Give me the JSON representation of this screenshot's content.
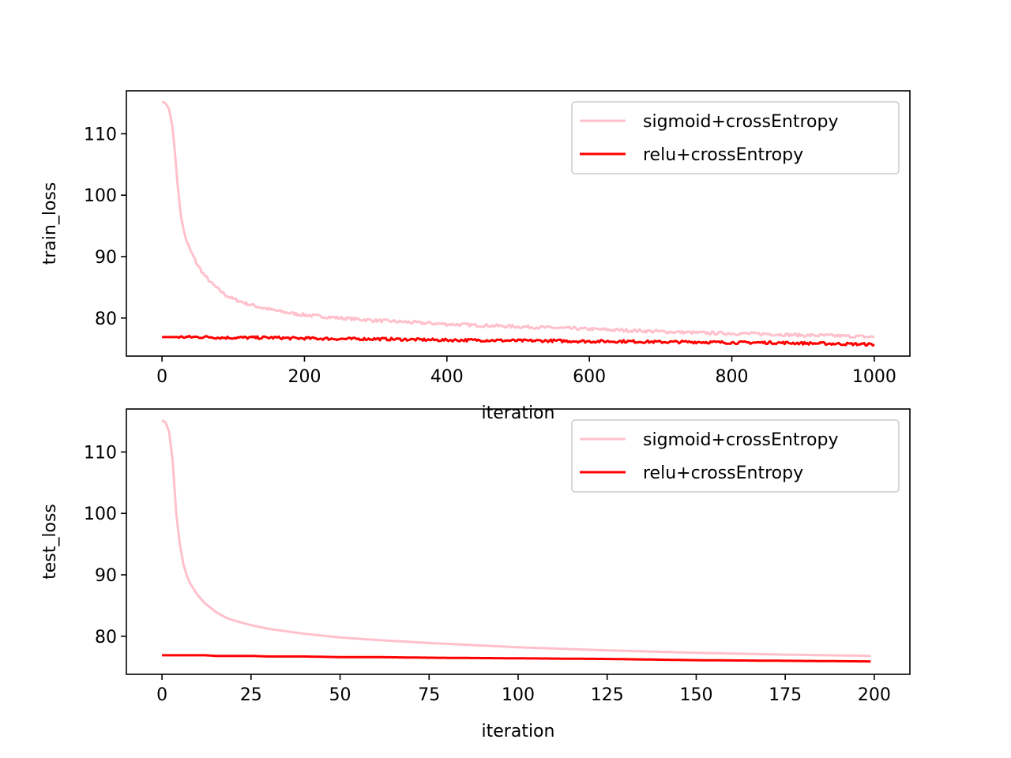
{
  "chart_data": [
    {
      "type": "line",
      "ylabel": "train_loss",
      "xlabel": "iteration",
      "xlim": [
        -50,
        1050
      ],
      "ylim": [
        73.8,
        117
      ],
      "xticks": [
        0,
        200,
        400,
        600,
        800,
        1000
      ],
      "yticks": [
        80,
        90,
        100,
        110
      ],
      "legend_position": "top-right",
      "x": [
        0,
        5,
        10,
        15,
        20,
        25,
        30,
        35,
        40,
        50,
        60,
        70,
        80,
        90,
        100,
        120,
        140,
        160,
        180,
        200,
        250,
        300,
        350,
        400,
        450,
        500,
        550,
        600,
        650,
        700,
        750,
        800,
        850,
        900,
        950,
        1000
      ],
      "series": [
        {
          "name": "sigmoid+crossEntropy",
          "color": "#ffc0cb",
          "values": [
            115.2,
            115.0,
            114.0,
            111.0,
            104.5,
            98.0,
            94.5,
            92.3,
            91.0,
            88.6,
            86.9,
            85.6,
            84.6,
            83.7,
            83.1,
            82.3,
            81.7,
            81.2,
            80.8,
            80.5,
            80.0,
            79.6,
            79.3,
            79.0,
            78.8,
            78.6,
            78.4,
            78.2,
            78.0,
            77.8,
            77.6,
            77.5,
            77.4,
            77.2,
            77.1,
            76.9
          ]
        },
        {
          "name": "relu+crossEntropy",
          "color": "#ff0000",
          "values": [
            76.9,
            76.9,
            76.9,
            76.9,
            76.9,
            76.9,
            76.9,
            76.9,
            76.9,
            76.9,
            76.9,
            76.9,
            76.8,
            76.8,
            76.8,
            76.8,
            76.8,
            76.8,
            76.7,
            76.7,
            76.6,
            76.6,
            76.5,
            76.4,
            76.4,
            76.3,
            76.3,
            76.2,
            76.2,
            76.1,
            76.1,
            76.0,
            76.0,
            75.9,
            75.8,
            75.7
          ]
        }
      ]
    },
    {
      "type": "line",
      "ylabel": "test_loss",
      "xlabel": "iteration",
      "xlim": [
        -10,
        210
      ],
      "ylim": [
        73.8,
        117
      ],
      "xticks": [
        0,
        25,
        50,
        75,
        100,
        125,
        150,
        175,
        200
      ],
      "yticks": [
        80,
        90,
        100,
        110
      ],
      "legend_position": "top-right",
      "x": [
        0,
        1,
        2,
        3,
        4,
        5,
        6,
        7,
        8,
        10,
        12,
        15,
        18,
        20,
        25,
        30,
        40,
        50,
        60,
        75,
        100,
        125,
        150,
        175,
        199
      ],
      "series": [
        {
          "name": "sigmoid+crossEntropy",
          "color": "#ffc0cb",
          "values": [
            115.2,
            114.8,
            113.3,
            108.5,
            100.0,
            95.0,
            91.8,
            89.8,
            88.5,
            86.7,
            85.4,
            84.0,
            83.0,
            82.6,
            81.8,
            81.2,
            80.4,
            79.8,
            79.4,
            78.9,
            78.2,
            77.7,
            77.3,
            77.0,
            76.8
          ]
        },
        {
          "name": "relu+crossEntropy",
          "color": "#ff0000",
          "values": [
            76.9,
            76.9,
            76.9,
            76.9,
            76.9,
            76.9,
            76.9,
            76.9,
            76.9,
            76.9,
            76.9,
            76.8,
            76.8,
            76.8,
            76.8,
            76.7,
            76.7,
            76.6,
            76.6,
            76.5,
            76.4,
            76.3,
            76.1,
            76.0,
            75.9
          ]
        }
      ]
    }
  ]
}
